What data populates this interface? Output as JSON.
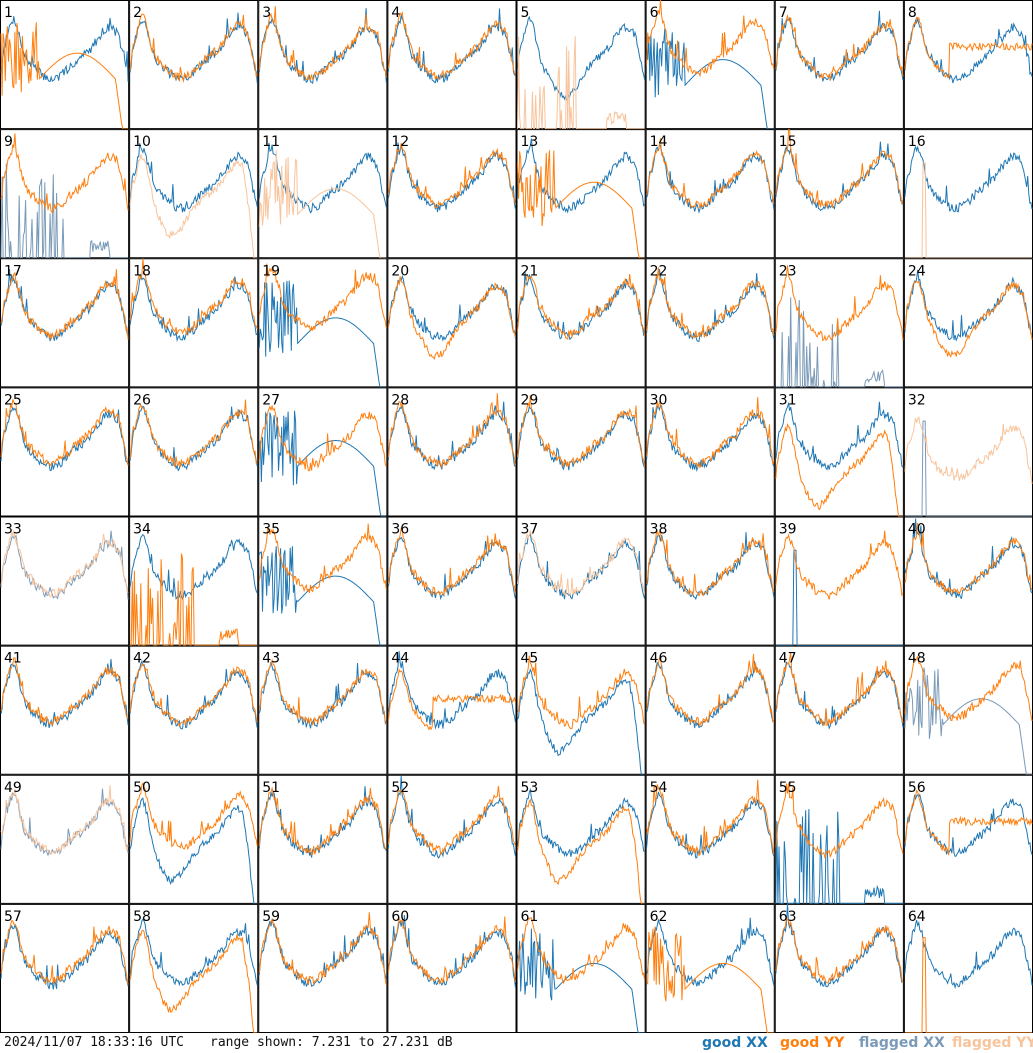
{
  "footer": {
    "timestamp": "2024/11/07 18:33:16 UTC",
    "range_label": "range shown: 7.231 to 27.231 dB",
    "legend": [
      {
        "label": "good XX",
        "color": "#1f77b4"
      },
      {
        "label": "good YY",
        "color": "#ff7f0e"
      },
      {
        "label": "flagged XX",
        "color": "#7a9ab8"
      },
      {
        "label": "flagged YY",
        "color": "#f8c49c"
      }
    ]
  },
  "chart_data": {
    "type": "line",
    "title": "",
    "xlabel": "",
    "ylabel": "",
    "ylim": [
      7.231,
      27.231
    ],
    "grid": {
      "rows": 8,
      "cols": 8
    },
    "colors": {
      "good_xx": "#1f77b4",
      "good_yy": "#ff7f0e",
      "flagged_xx": "#7a9ab8",
      "flagged_yy": "#f8c49c"
    },
    "panels": [
      {
        "label": "1",
        "xx": {
          "flag": false,
          "shape": "normal",
          "off": 0
        },
        "yy": {
          "flag": false,
          "shape": "oscdrop",
          "off": 0
        }
      },
      {
        "label": "2",
        "xx": {
          "flag": false,
          "shape": "normal",
          "off": 0
        },
        "yy": {
          "flag": false,
          "shape": "normal",
          "off": 0.3
        }
      },
      {
        "label": "3",
        "xx": {
          "flag": false,
          "shape": "normal",
          "off": 0
        },
        "yy": {
          "flag": false,
          "shape": "normal",
          "off": 0.3
        }
      },
      {
        "label": "4",
        "xx": {
          "flag": false,
          "shape": "normal",
          "off": 0
        },
        "yy": {
          "flag": false,
          "shape": "normal",
          "off": 0.5
        }
      },
      {
        "label": "5",
        "xx": {
          "flag": false,
          "shape": "bowl",
          "off": 0
        },
        "yy": {
          "flag": true,
          "shape": "spikes",
          "off": 0
        }
      },
      {
        "label": "6",
        "xx": {
          "flag": false,
          "shape": "oscdrop",
          "off": -1
        },
        "yy": {
          "flag": false,
          "shape": "normal",
          "off": 1
        }
      },
      {
        "label": "7",
        "xx": {
          "flag": false,
          "shape": "normal",
          "off": 0
        },
        "yy": {
          "flag": false,
          "shape": "normal",
          "off": 0.3
        }
      },
      {
        "label": "8",
        "xx": {
          "flag": false,
          "shape": "normal",
          "off": 0
        },
        "yy": {
          "flag": false,
          "shape": "flatright",
          "off": 0
        }
      },
      {
        "label": "9",
        "xx": {
          "flag": true,
          "shape": "spikes",
          "off": 0
        },
        "yy": {
          "flag": false,
          "shape": "normal",
          "off": 0
        }
      },
      {
        "label": "10",
        "xx": {
          "flag": false,
          "shape": "normal",
          "off": 0
        },
        "yy": {
          "flag": true,
          "shape": "bowldrop",
          "off": -1
        }
      },
      {
        "label": "11",
        "xx": {
          "flag": false,
          "shape": "normal",
          "off": 0
        },
        "yy": {
          "flag": true,
          "shape": "oscdrop",
          "off": -1
        }
      },
      {
        "label": "12",
        "xx": {
          "flag": false,
          "shape": "normal",
          "off": 0
        },
        "yy": {
          "flag": false,
          "shape": "normal",
          "off": 0.5
        }
      },
      {
        "label": "13",
        "xx": {
          "flag": false,
          "shape": "normal",
          "off": 0
        },
        "yy": {
          "flag": false,
          "shape": "oscdrop",
          "off": 0
        }
      },
      {
        "label": "14",
        "xx": {
          "flag": false,
          "shape": "normal",
          "off": 0
        },
        "yy": {
          "flag": false,
          "shape": "normal",
          "off": 0.4
        }
      },
      {
        "label": "15",
        "xx": {
          "flag": false,
          "shape": "normal",
          "off": 0
        },
        "yy": {
          "flag": false,
          "shape": "normal",
          "off": 0.4
        }
      },
      {
        "label": "16",
        "xx": {
          "flag": false,
          "shape": "normal",
          "off": 0
        },
        "yy": {
          "flag": true,
          "shape": "spike1",
          "off": 0
        }
      },
      {
        "label": "17",
        "xx": {
          "flag": false,
          "shape": "normal",
          "off": 0
        },
        "yy": {
          "flag": false,
          "shape": "normal",
          "off": 0.3
        }
      },
      {
        "label": "18",
        "xx": {
          "flag": false,
          "shape": "normal",
          "off": 0
        },
        "yy": {
          "flag": false,
          "shape": "normal",
          "off": 0.8
        }
      },
      {
        "label": "19",
        "xx": {
          "flag": false,
          "shape": "oscdrop",
          "off": -1
        },
        "yy": {
          "flag": false,
          "shape": "normal",
          "off": 1.5
        }
      },
      {
        "label": "20",
        "xx": {
          "flag": false,
          "shape": "normal",
          "off": 0
        },
        "yy": {
          "flag": false,
          "shape": "bowl",
          "off": 0
        }
      },
      {
        "label": "21",
        "xx": {
          "flag": false,
          "shape": "normal",
          "off": 0
        },
        "yy": {
          "flag": false,
          "shape": "normal",
          "off": 0.4
        }
      },
      {
        "label": "22",
        "xx": {
          "flag": false,
          "shape": "normal",
          "off": 0
        },
        "yy": {
          "flag": false,
          "shape": "normal",
          "off": 0.3
        }
      },
      {
        "label": "23",
        "xx": {
          "flag": true,
          "shape": "spikes",
          "off": 0
        },
        "yy": {
          "flag": false,
          "shape": "normal",
          "off": 0
        }
      },
      {
        "label": "24",
        "xx": {
          "flag": false,
          "shape": "normal",
          "off": 0
        },
        "yy": {
          "flag": false,
          "shape": "bowl",
          "off": 0
        }
      },
      {
        "label": "25",
        "xx": {
          "flag": false,
          "shape": "normal",
          "off": 0
        },
        "yy": {
          "flag": false,
          "shape": "normal",
          "off": 0.6
        }
      },
      {
        "label": "26",
        "xx": {
          "flag": false,
          "shape": "normal",
          "off": 0
        },
        "yy": {
          "flag": false,
          "shape": "normal",
          "off": 0.3
        }
      },
      {
        "label": "27",
        "xx": {
          "flag": false,
          "shape": "oscdrop",
          "off": 0
        },
        "yy": {
          "flag": false,
          "shape": "normal",
          "off": 0
        }
      },
      {
        "label": "28",
        "xx": {
          "flag": false,
          "shape": "normal",
          "off": 0
        },
        "yy": {
          "flag": false,
          "shape": "normal",
          "off": 0.4
        }
      },
      {
        "label": "29",
        "xx": {
          "flag": false,
          "shape": "normal",
          "off": 0
        },
        "yy": {
          "flag": false,
          "shape": "normal",
          "off": 0.4
        }
      },
      {
        "label": "30",
        "xx": {
          "flag": false,
          "shape": "normal",
          "off": 0
        },
        "yy": {
          "flag": false,
          "shape": "normal",
          "off": 0.4
        }
      },
      {
        "label": "31",
        "xx": {
          "flag": false,
          "shape": "normal",
          "off": 0
        },
        "yy": {
          "flag": false,
          "shape": "bowldrop",
          "off": -3
        }
      },
      {
        "label": "32",
        "xx": {
          "flag": true,
          "shape": "spike1",
          "off": 0
        },
        "yy": {
          "flag": true,
          "shape": "normal",
          "off": -2
        }
      },
      {
        "label": "33",
        "xx": {
          "flag": true,
          "shape": "normal",
          "off": 0
        },
        "yy": {
          "flag": true,
          "shape": "normal",
          "off": 0.3
        }
      },
      {
        "label": "34",
        "xx": {
          "flag": false,
          "shape": "normal",
          "off": 0
        },
        "yy": {
          "flag": false,
          "shape": "spikes",
          "off": 0
        }
      },
      {
        "label": "35",
        "xx": {
          "flag": false,
          "shape": "oscdrop",
          "off": -1
        },
        "yy": {
          "flag": false,
          "shape": "normal",
          "off": 1
        }
      },
      {
        "label": "36",
        "xx": {
          "flag": false,
          "shape": "normal",
          "off": 0
        },
        "yy": {
          "flag": false,
          "shape": "normal",
          "off": 0.4
        }
      },
      {
        "label": "37",
        "xx": {
          "flag": false,
          "shape": "normal",
          "off": 0
        },
        "yy": {
          "flag": true,
          "shape": "normal",
          "off": 0.3
        }
      },
      {
        "label": "38",
        "xx": {
          "flag": false,
          "shape": "normal",
          "off": 0
        },
        "yy": {
          "flag": false,
          "shape": "normal",
          "off": 0.3
        }
      },
      {
        "label": "39",
        "xx": {
          "flag": false,
          "shape": "spike1",
          "off": 0
        },
        "yy": {
          "flag": false,
          "shape": "normal",
          "off": 0
        }
      },
      {
        "label": "40",
        "xx": {
          "flag": false,
          "shape": "normal",
          "off": 0
        },
        "yy": {
          "flag": false,
          "shape": "normal",
          "off": 0.3
        }
      },
      {
        "label": "41",
        "xx": {
          "flag": false,
          "shape": "normal",
          "off": 0
        },
        "yy": {
          "flag": false,
          "shape": "normal",
          "off": 0.4
        }
      },
      {
        "label": "42",
        "xx": {
          "flag": false,
          "shape": "normal",
          "off": 0
        },
        "yy": {
          "flag": false,
          "shape": "normal",
          "off": 0.3
        }
      },
      {
        "label": "43",
        "xx": {
          "flag": false,
          "shape": "normal",
          "off": 0
        },
        "yy": {
          "flag": false,
          "shape": "normal",
          "off": 0.4
        }
      },
      {
        "label": "44",
        "xx": {
          "flag": false,
          "shape": "normal",
          "off": 0
        },
        "yy": {
          "flag": false,
          "shape": "flatright",
          "off": -1
        }
      },
      {
        "label": "45",
        "xx": {
          "flag": false,
          "shape": "bowldrop",
          "off": -1
        },
        "yy": {
          "flag": false,
          "shape": "normal",
          "off": 0
        }
      },
      {
        "label": "46",
        "xx": {
          "flag": false,
          "shape": "normal",
          "off": 0
        },
        "yy": {
          "flag": false,
          "shape": "normal",
          "off": 0.4
        }
      },
      {
        "label": "47",
        "xx": {
          "flag": false,
          "shape": "normal",
          "off": 0
        },
        "yy": {
          "flag": false,
          "shape": "normal",
          "off": 0.4
        }
      },
      {
        "label": "48",
        "xx": {
          "flag": true,
          "shape": "oscdrop",
          "off": 0
        },
        "yy": {
          "flag": false,
          "shape": "normal",
          "off": 1
        }
      },
      {
        "label": "49",
        "xx": {
          "flag": true,
          "shape": "normal",
          "off": 0
        },
        "yy": {
          "flag": true,
          "shape": "normal",
          "off": 0.3
        }
      },
      {
        "label": "50",
        "xx": {
          "flag": false,
          "shape": "bowldrop",
          "off": -1
        },
        "yy": {
          "flag": false,
          "shape": "normal",
          "off": 1
        }
      },
      {
        "label": "51",
        "xx": {
          "flag": false,
          "shape": "normal",
          "off": 0
        },
        "yy": {
          "flag": false,
          "shape": "normal",
          "off": 0.4
        }
      },
      {
        "label": "52",
        "xx": {
          "flag": false,
          "shape": "normal",
          "off": 0
        },
        "yy": {
          "flag": false,
          "shape": "normal",
          "off": 0.6
        }
      },
      {
        "label": "53",
        "xx": {
          "flag": false,
          "shape": "normal",
          "off": 0
        },
        "yy": {
          "flag": false,
          "shape": "bowldrop",
          "off": -1
        }
      },
      {
        "label": "54",
        "xx": {
          "flag": false,
          "shape": "normal",
          "off": 0
        },
        "yy": {
          "flag": false,
          "shape": "normal",
          "off": 0.4
        }
      },
      {
        "label": "55",
        "xx": {
          "flag": false,
          "shape": "spikes",
          "off": 0
        },
        "yy": {
          "flag": false,
          "shape": "normal",
          "off": 0
        }
      },
      {
        "label": "56",
        "xx": {
          "flag": false,
          "shape": "normal",
          "off": 0
        },
        "yy": {
          "flag": false,
          "shape": "flatright",
          "off": 0
        }
      },
      {
        "label": "57",
        "xx": {
          "flag": false,
          "shape": "normal",
          "off": -0.5
        },
        "yy": {
          "flag": false,
          "shape": "normal",
          "off": 0.3
        }
      },
      {
        "label": "58",
        "xx": {
          "flag": false,
          "shape": "normal",
          "off": 0
        },
        "yy": {
          "flag": false,
          "shape": "bowldrop",
          "off": -1
        }
      },
      {
        "label": "59",
        "xx": {
          "flag": false,
          "shape": "normal",
          "off": 0
        },
        "yy": {
          "flag": false,
          "shape": "normal",
          "off": 0.3
        }
      },
      {
        "label": "60",
        "xx": {
          "flag": false,
          "shape": "normal",
          "off": 0
        },
        "yy": {
          "flag": false,
          "shape": "normal",
          "off": 0.4
        }
      },
      {
        "label": "61",
        "xx": {
          "flag": false,
          "shape": "oscdrop",
          "off": -1
        },
        "yy": {
          "flag": false,
          "shape": "normal",
          "off": 0.5
        }
      },
      {
        "label": "62",
        "xx": {
          "flag": false,
          "shape": "normal",
          "off": 0
        },
        "yy": {
          "flag": false,
          "shape": "oscdrop",
          "off": -1
        }
      },
      {
        "label": "63",
        "xx": {
          "flag": false,
          "shape": "normal",
          "off": 0
        },
        "yy": {
          "flag": false,
          "shape": "normal",
          "off": 0.4
        }
      },
      {
        "label": "64",
        "xx": {
          "flag": false,
          "shape": "normal",
          "off": 0
        },
        "yy": {
          "flag": false,
          "shape": "spike1",
          "off": 0
        }
      }
    ]
  }
}
